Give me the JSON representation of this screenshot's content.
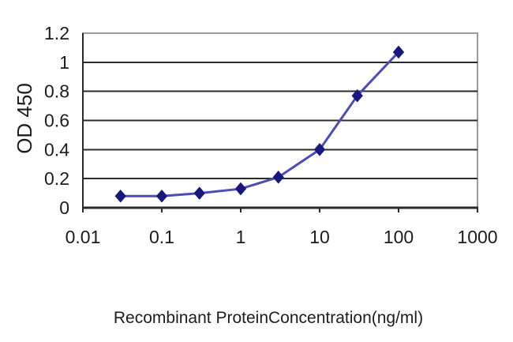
{
  "chart_data": {
    "type": "line",
    "x": [
      0.03,
      0.1,
      0.3,
      1,
      3,
      10,
      30,
      100
    ],
    "series": [
      {
        "name": "OD 450",
        "values": [
          0.08,
          0.08,
          0.1,
          0.13,
          0.21,
          0.4,
          0.77,
          1.07
        ]
      }
    ],
    "title": "",
    "xlabel": "Recombinant ProteinConcentration(ng/ml)",
    "ylabel": "OD 450",
    "x_scale": "log",
    "xlim": [
      0.01,
      1000
    ],
    "ylim": [
      0,
      1.2
    ],
    "x_ticks": [
      0.01,
      0.1,
      1,
      10,
      100,
      1000
    ],
    "x_tick_labels": [
      "0.01",
      "0.1",
      "1",
      "10",
      "100",
      "1000"
    ],
    "y_ticks": [
      0,
      0.2,
      0.4,
      0.6,
      0.8,
      1,
      1.2
    ],
    "y_tick_labels": [
      "0",
      "0.2",
      "0.4",
      "0.6",
      "0.8",
      "1",
      "1.2"
    ],
    "grid": true,
    "legend": "none",
    "marker": "diamond",
    "colors": {
      "line": "#4d4db5",
      "marker": "#17177e",
      "grid": "#2b2b2b",
      "axis": "#2b2b2b",
      "border": "#9b9b9b",
      "plot_bg": "#ffffff",
      "text": "#1c1c1c"
    }
  }
}
